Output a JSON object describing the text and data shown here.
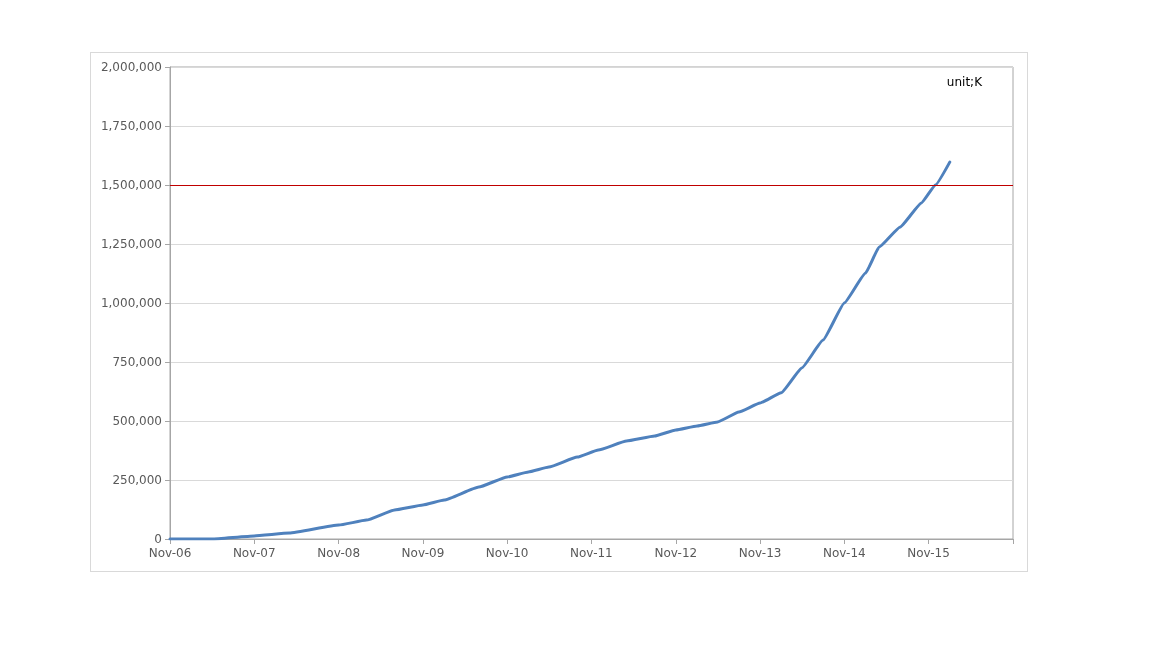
{
  "chart_data": {
    "type": "line",
    "annotations": [
      "unit;K"
    ],
    "x": [
      "2006-11",
      "2007-05",
      "2007-11",
      "2008-04",
      "2008-11",
      "2009-03",
      "2009-07",
      "2009-11",
      "2010-02",
      "2010-07",
      "2010-11",
      "2011-02",
      "2011-05",
      "2011-09",
      "2011-12",
      "2012-04",
      "2012-08",
      "2012-11",
      "2013-02",
      "2013-05",
      "2013-08",
      "2013-11",
      "2014-02",
      "2014-05",
      "2014-08",
      "2014-11",
      "2015-02",
      "2015-04",
      "2015-07",
      "2015-10",
      "2015-12",
      "2016-02"
    ],
    "series": [
      {
        "color": "#4f81bd",
        "values": [
          0,
          0,
          13000,
          25000,
          59000,
          80000,
          123000,
          144000,
          165000,
          220000,
          263000,
          284000,
          305000,
          347000,
          377000,
          415000,
          436000,
          462000,
          479000,
          496000,
          538000,
          576000,
          620000,
          725000,
          843000,
          1000000,
          1127000,
          1237000,
          1322000,
          1424000,
          1500000,
          1597000
        ]
      }
    ],
    "xlim": [
      "2006-11",
      "2016-11"
    ],
    "xticks": [
      {
        "value": "2006-11",
        "label": "Nov-06"
      },
      {
        "value": "2007-11",
        "label": "Nov-07"
      },
      {
        "value": "2008-11",
        "label": "Nov-08"
      },
      {
        "value": "2009-11",
        "label": "Nov-09"
      },
      {
        "value": "2010-11",
        "label": "Nov-10"
      },
      {
        "value": "2011-11",
        "label": "Nov-11"
      },
      {
        "value": "2012-11",
        "label": "Nov-12"
      },
      {
        "value": "2013-11",
        "label": "Nov-13"
      },
      {
        "value": "2014-11",
        "label": "Nov-14"
      },
      {
        "value": "2015-11",
        "label": "Nov-15"
      },
      {
        "value": "2016-11",
        "label": null
      }
    ],
    "ylim": [
      0,
      2000000
    ],
    "yticks": [
      {
        "value": 0,
        "label": "0"
      },
      {
        "value": 250000,
        "label": "250,000"
      },
      {
        "value": 500000,
        "label": "500,000"
      },
      {
        "value": 750000,
        "label": "750,000"
      },
      {
        "value": 1000000,
        "label": "1,000,000"
      },
      {
        "value": 1250000,
        "label": "1,250,000"
      },
      {
        "value": 1500000,
        "label": "1,500,000"
      },
      {
        "value": 1750000,
        "label": "1,750,000"
      },
      {
        "value": 2000000,
        "label": "2,000,000"
      }
    ],
    "ref_lines": [
      {
        "axis": "y",
        "value": 1500000,
        "color": "#c00000"
      }
    ],
    "grid": "y",
    "marker": "none",
    "line_style": "solid"
  }
}
